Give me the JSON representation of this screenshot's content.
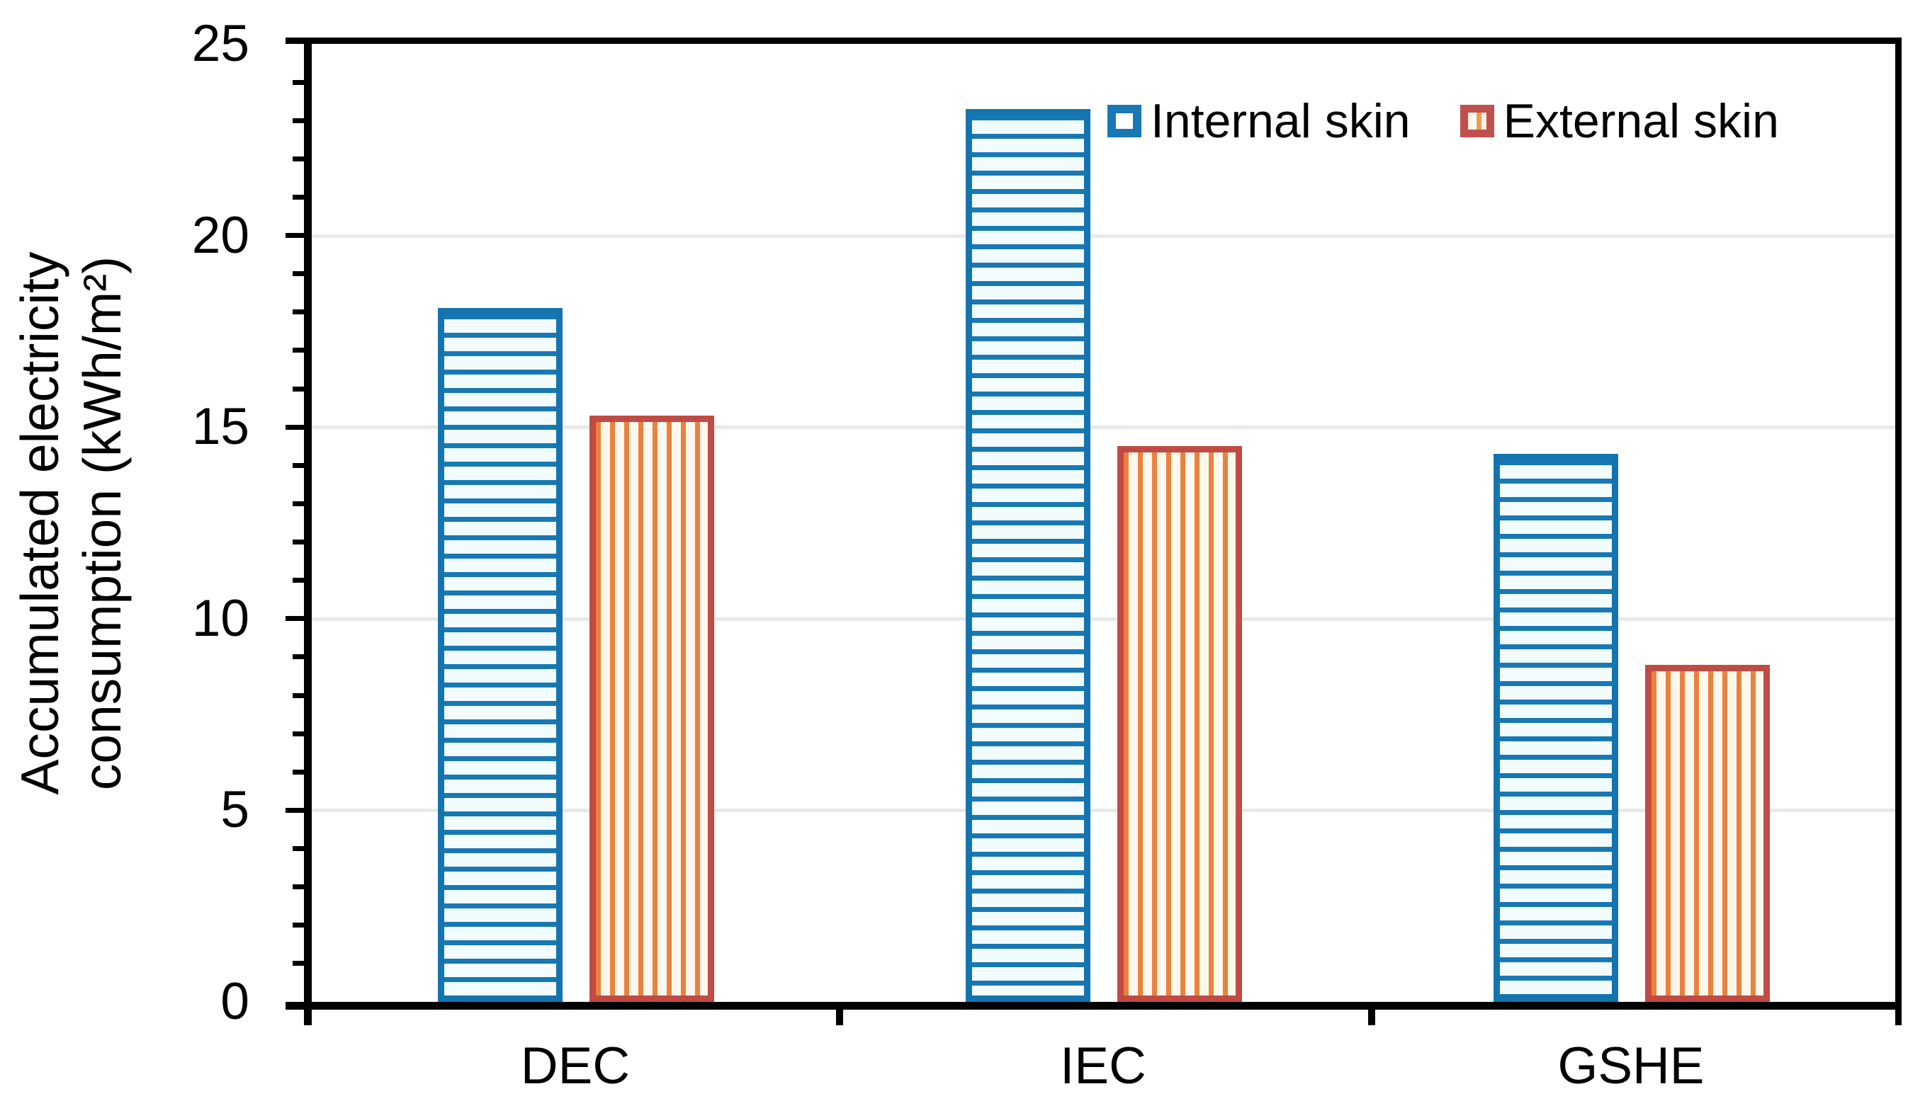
{
  "chart_data": {
    "type": "bar",
    "title": "",
    "categories": [
      "DEC",
      "IEC",
      "GSHE"
    ],
    "series": [
      {
        "name": "Internal skin",
        "values": [
          18.1,
          23.3,
          14.3
        ],
        "border_color": "#1474ad",
        "stripe_color": "#1878b4",
        "fill_color": "#f2fcff",
        "pattern": "horizontal-stripes"
      },
      {
        "name": "External skin",
        "values": [
          15.3,
          14.5,
          8.8
        ],
        "border_color": "#bf4b44",
        "stripe_color": "#e8823e",
        "fill_color": "#fdf7ec",
        "pattern": "vertical-stripes"
      }
    ],
    "xlabel": "",
    "ylabel_line1": "Accumulated electricity",
    "ylabel_line2": "consumption (kWh/m²)",
    "ylim": [
      0,
      25
    ],
    "yticks": [
      "0",
      "5",
      "10",
      "15",
      "20",
      "25"
    ],
    "ytick_minor_step": 1,
    "ytick_major_step": 5,
    "grid": "horizontal gridlines at major ticks",
    "gridline_color": "#e9e9e9",
    "axis_color": "#000000",
    "legend_position": "top-right inside plot"
  }
}
